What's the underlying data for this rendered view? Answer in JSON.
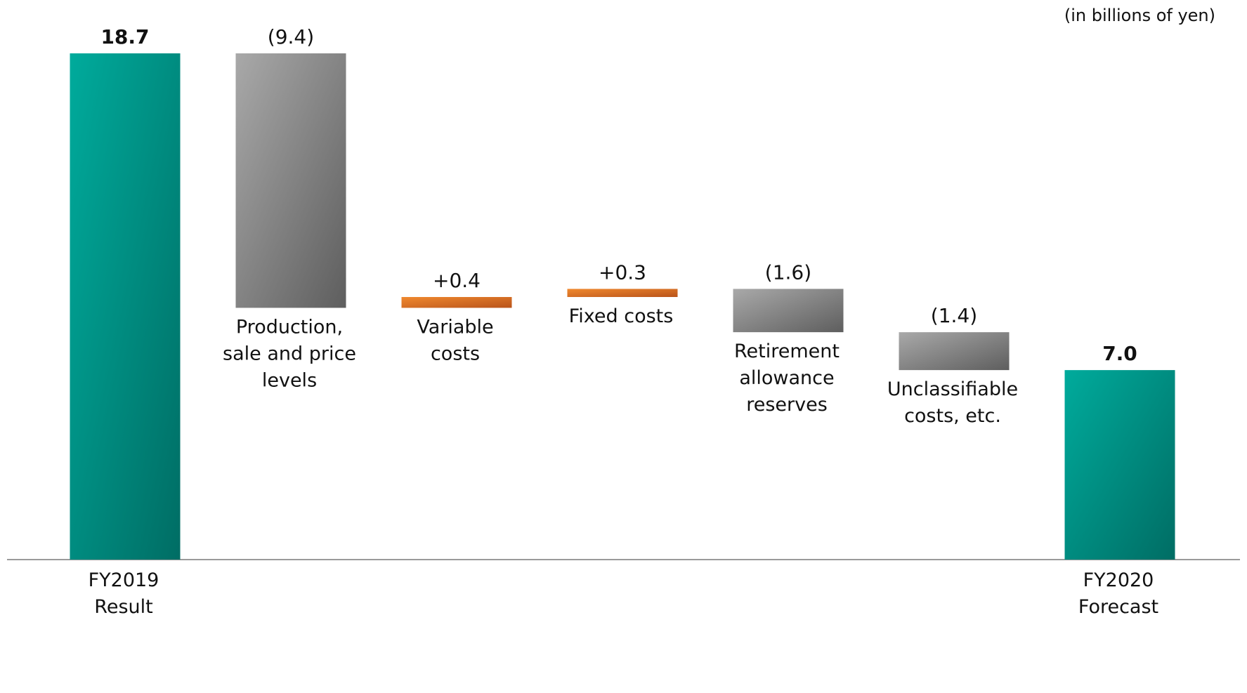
{
  "unit_note": "(in billions of yen)",
  "chart_data": {
    "type": "waterfall",
    "title": "",
    "xlabel": "",
    "ylabel": "",
    "ylim": [
      0,
      20.5
    ],
    "grid": false,
    "legend": "none",
    "colors": {
      "total": "#009e8c",
      "decrease": "#8c8c8c",
      "increase": "#e06a1c"
    },
    "steps": [
      {
        "category": [
          "FY2019",
          "Result"
        ],
        "kind": "total",
        "value": 18.7,
        "label": "18.7",
        "bold": true,
        "label_position": "bottom"
      },
      {
        "category": [
          "Production,",
          "sale and price",
          "levels"
        ],
        "kind": "decrease",
        "value": -9.4,
        "label": "(9.4)",
        "bold": false,
        "label_position": "below-bar"
      },
      {
        "category": [
          "Variable",
          "costs"
        ],
        "kind": "increase",
        "value": 0.4,
        "label": "+0.4",
        "bold": false,
        "label_position": "below-bar"
      },
      {
        "category": [
          "Fixed costs"
        ],
        "kind": "increase",
        "value": 0.3,
        "label": "+0.3",
        "bold": false,
        "label_position": "below-bar"
      },
      {
        "category": [
          "Retirement",
          "allowance",
          "reserves"
        ],
        "kind": "decrease",
        "value": -1.6,
        "label": "(1.6)",
        "bold": false,
        "label_position": "below-bar"
      },
      {
        "category": [
          "Unclassifiable",
          "costs, etc."
        ],
        "kind": "decrease",
        "value": -1.4,
        "label": "(1.4)",
        "bold": false,
        "label_position": "below-bar"
      },
      {
        "category": [
          "FY2020",
          "Forecast"
        ],
        "kind": "total",
        "value": 7.0,
        "label": "7.0",
        "bold": true,
        "label_position": "bottom"
      }
    ]
  }
}
